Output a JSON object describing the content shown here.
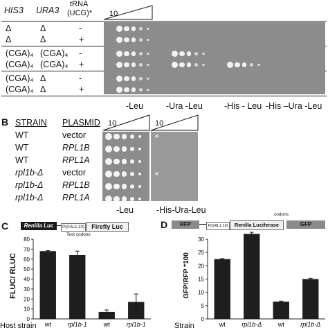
{
  "panelA": {
    "headers": {
      "his3": "HIS3",
      "ura3": "URA3",
      "trna_line1": "tRNA",
      "trna_line2": "(UCG)*",
      "dilution": "10"
    },
    "rows": [
      {
        "his3": "Δ",
        "ura3": "Δ",
        "trna": "-"
      },
      {
        "his3": "Δ",
        "ura3": "Δ",
        "trna": "+"
      },
      {
        "his3": "(CGA)₄",
        "ura3": "(CGA)₄",
        "trna": "-"
      },
      {
        "his3": "(CGA)₄",
        "ura3": "(CGA)₄",
        "trna": "+"
      },
      {
        "his3": "(CGA)₄",
        "ura3": "Δ",
        "trna": "-"
      },
      {
        "his3": "(CGA)₄",
        "ura3": "Δ",
        "trna": "+"
      }
    ],
    "media": [
      "-Leu",
      "-Ura -Leu",
      "-His - Leu",
      "-His –Ura -Leu"
    ]
  },
  "panelB": {
    "letter": "B",
    "headers": {
      "strain": "STRAIN",
      "plasmid": "PLASMID",
      "dilution": "10"
    },
    "rows": [
      {
        "strain": "WT",
        "plasmid": "vector"
      },
      {
        "strain": "WT",
        "plasmid": "RPL1B"
      },
      {
        "strain": "WT",
        "plasmid": "RPL1A"
      },
      {
        "strain": "rpl1b-Δ",
        "plasmid": "vector"
      },
      {
        "strain": "rpl1b-Δ",
        "plasmid": "RPL1B"
      },
      {
        "strain": "rpl1b-Δ",
        "plasmid": "RPL1A"
      }
    ],
    "media": [
      "-Leu",
      "-His-Ura-Leu"
    ]
  },
  "panelC": {
    "letter": "C",
    "construct": {
      "renilla": "Renilla Luc",
      "promoter": "P(GAL1,10)",
      "firefly": "Firefly Luc",
      "test_codons": "Test codons"
    },
    "chart_data": {
      "type": "bar",
      "ylabel": "FLUC/ RLUC",
      "ylim": [
        0,
        80
      ],
      "yticks": [
        0,
        10,
        20,
        30,
        40,
        50,
        60,
        70,
        80
      ],
      "xlabel_prefix": "Host strain",
      "categories": [
        "wt",
        "rpl1b-1",
        "wt",
        "rpl1b-1"
      ],
      "values": [
        68,
        64,
        7,
        17
      ],
      "errors": [
        0.5,
        4,
        2,
        8
      ]
    }
  },
  "panelD": {
    "letter": "D",
    "construct": {
      "rfp": "RFP",
      "promoter": "P(GAL1,10)",
      "renilla": "Renilla Luciferase",
      "gfp": "GFP",
      "codons": "codons"
    },
    "chart_data": {
      "type": "bar",
      "ylabel": "GFP/RFP *100",
      "ylim": [
        0,
        30
      ],
      "yticks": [
        0,
        5,
        10,
        15,
        20,
        25,
        30
      ],
      "xlabel_prefix": "Strain",
      "categories": [
        "wt",
        "rpl1b-Δ",
        "wt",
        "rpl1b-Δ"
      ],
      "values": [
        22.5,
        32,
        6.5,
        15
      ],
      "errors": [
        0.2,
        0.6,
        0.2,
        0.3
      ]
    }
  }
}
